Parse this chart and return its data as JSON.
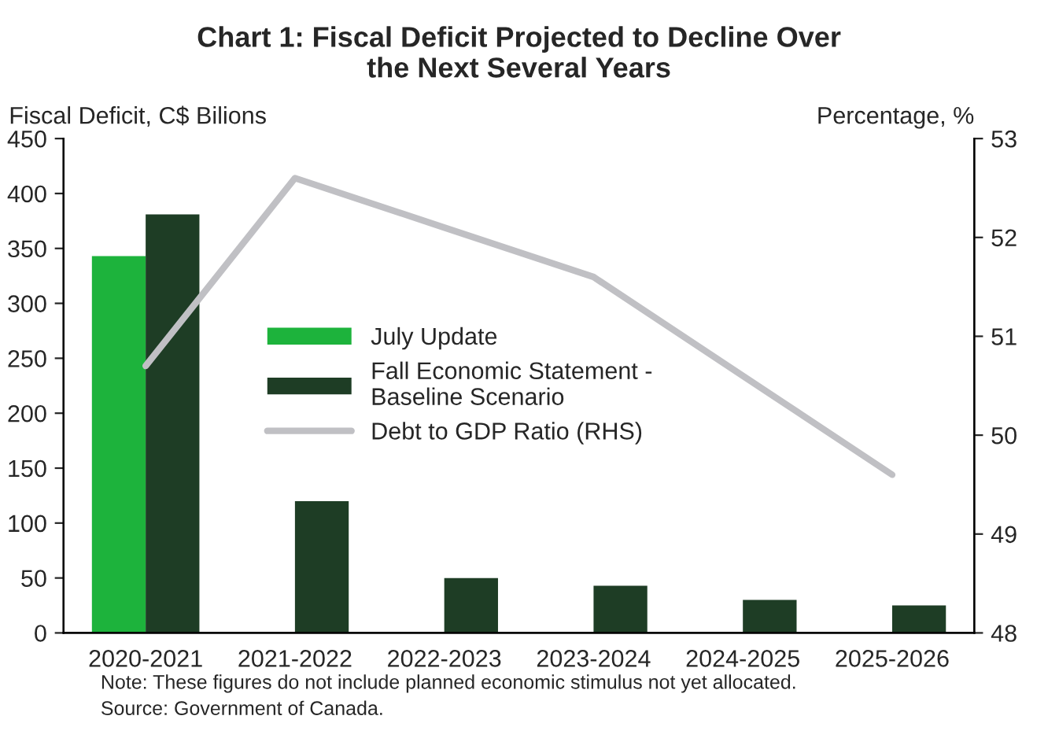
{
  "chart_data": {
    "type": "bar",
    "title": "Chart 1: Fiscal Deficit Projected to Decline Over\nthe Next Several Years",
    "ylabel": "Fiscal Deficit, C$ Bilions",
    "y2label": "Percentage, %",
    "categories": [
      "2020-2021",
      "2021-2022",
      "2022-2023",
      "2023-2024",
      "2024-2025",
      "2025-2026"
    ],
    "series": [
      {
        "name": "July Update",
        "color": "#1db33c",
        "values": [
          343,
          null,
          null,
          null,
          null,
          null
        ]
      },
      {
        "name": "Fall Economic Statement -\nBaseline Scenario",
        "color": "#1e3d25",
        "values": [
          381,
          120,
          50,
          43,
          30,
          25
        ]
      },
      {
        "name": "Debt to GDP Ratio (RHS)",
        "color": "#c0c0c4",
        "type": "line",
        "axis": "y2",
        "values": [
          50.7,
          52.6,
          52.1,
          51.6,
          50.6,
          49.6
        ]
      }
    ],
    "ylim": [
      0,
      450
    ],
    "yticks": [
      0,
      50,
      100,
      150,
      200,
      250,
      300,
      350,
      400,
      450
    ],
    "y2lim": [
      48,
      53
    ],
    "y2ticks": [
      48,
      49,
      50,
      51,
      52,
      53
    ],
    "grid": false,
    "legend": "center left",
    "annotations": [
      "Note: These figures do not include planned economic stimulus not yet allocated.",
      "Source: Government of Canada."
    ]
  }
}
